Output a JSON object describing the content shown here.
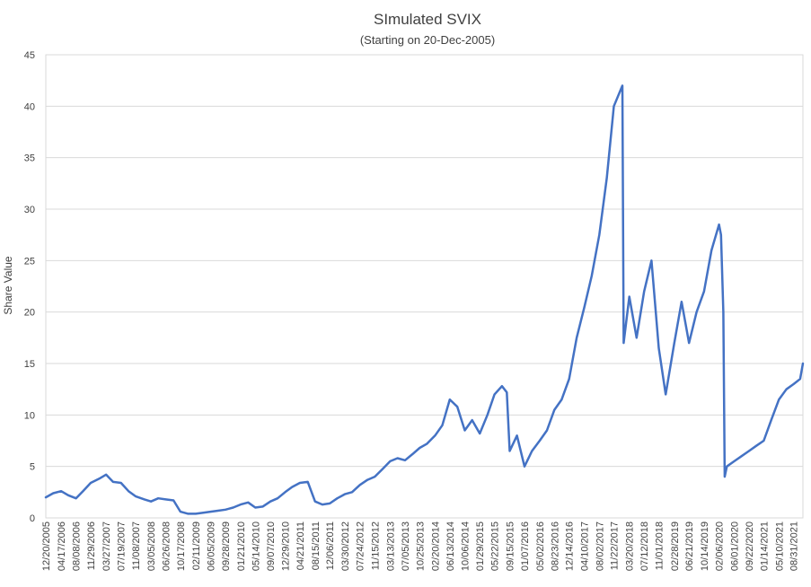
{
  "chart_data": {
    "type": "line",
    "title": "SImulated SVIX",
    "subtitle": "(Starting on 20-Dec-2005)",
    "xlabel": "",
    "ylabel": "Share Value",
    "ylim": [
      0,
      45
    ],
    "yticks": [
      0,
      5,
      10,
      15,
      20,
      25,
      30,
      35,
      40,
      45
    ],
    "grid": true,
    "legend": "none",
    "line_color": "#4472c4",
    "xticks": [
      "12/20/2005",
      "04/17/2006",
      "08/08/2006",
      "11/29/2006",
      "03/27/2007",
      "07/19/2007",
      "11/08/2007",
      "03/05/2008",
      "06/26/2008",
      "10/17/2008",
      "02/11/2009",
      "06/05/2009",
      "09/28/2009",
      "01/21/2010",
      "05/14/2010",
      "09/07/2010",
      "12/29/2010",
      "04/21/2011",
      "08/15/2011",
      "12/06/2011",
      "03/30/2012",
      "07/24/2012",
      "11/15/2012",
      "03/13/2013",
      "07/05/2013",
      "10/25/2013",
      "02/20/2014",
      "06/13/2014",
      "10/06/2014",
      "01/29/2015",
      "05/22/2015",
      "09/15/2015",
      "01/07/2016",
      "05/02/2016",
      "08/23/2016",
      "12/14/2016",
      "04/10/2017",
      "08/02/2017",
      "11/22/2017",
      "03/20/2018",
      "07/12/2018",
      "11/01/2018",
      "02/28/2019",
      "06/21/2019",
      "10/14/2019",
      "02/06/2020",
      "06/01/2020",
      "09/22/2020",
      "01/14/2021",
      "05/10/2021",
      "08/31/2021"
    ],
    "series": [
      {
        "x": [
          "2005-12-20",
          "2006-02-15",
          "2006-04-17",
          "2006-06-10",
          "2006-08-08",
          "2006-10-01",
          "2006-11-29",
          "2007-02-01",
          "2007-03-27",
          "2007-05-20",
          "2007-07-19",
          "2007-09-15",
          "2007-11-08",
          "2008-01-15",
          "2008-03-05",
          "2008-04-30",
          "2008-06-26",
          "2008-08-25",
          "2008-10-17",
          "2008-12-15",
          "2009-02-11",
          "2009-04-10",
          "2009-06-05",
          "2009-08-01",
          "2009-09-28",
          "2009-11-25",
          "2010-01-21",
          "2010-03-20",
          "2010-05-14",
          "2010-07-10",
          "2010-09-07",
          "2010-11-01",
          "2010-12-29",
          "2011-02-20",
          "2011-04-21",
          "2011-06-20",
          "2011-08-15",
          "2011-10-10",
          "2011-12-06",
          "2012-02-01",
          "2012-03-30",
          "2012-05-25",
          "2012-07-24",
          "2012-09-20",
          "2012-11-15",
          "2013-01-10",
          "2013-03-13",
          "2013-05-08",
          "2013-07-05",
          "2013-09-01",
          "2013-10-25",
          "2013-12-20",
          "2014-02-20",
          "2014-04-17",
          "2014-06-13",
          "2014-08-10",
          "2014-10-06",
          "2014-12-01",
          "2015-01-29",
          "2015-03-28",
          "2015-05-22",
          "2015-07-18",
          "2015-08-24",
          "2015-09-15",
          "2015-11-10",
          "2016-01-07",
          "2016-03-04",
          "2016-05-02",
          "2016-06-27",
          "2016-08-23",
          "2016-10-18",
          "2016-12-14",
          "2017-02-10",
          "2017-04-10",
          "2017-06-05",
          "2017-08-02",
          "2017-09-28",
          "2017-11-22",
          "2018-01-26",
          "2018-02-05",
          "2018-03-20",
          "2018-05-15",
          "2018-07-12",
          "2018-09-06",
          "2018-11-01",
          "2018-12-24",
          "2019-02-28",
          "2019-04-25",
          "2019-06-21",
          "2019-08-18",
          "2019-10-14",
          "2019-12-10",
          "2020-02-06",
          "2020-02-21",
          "2020-03-10",
          "2020-03-20",
          "2020-04-06",
          "2020-06-01",
          "2020-07-28",
          "2020-09-22",
          "2020-11-18",
          "2021-01-14",
          "2021-03-12",
          "2021-05-10",
          "2021-07-06",
          "2021-08-31",
          "2021-10-20",
          "2021-11-10"
        ],
        "values": [
          2.0,
          2.4,
          2.6,
          2.2,
          1.9,
          2.6,
          3.4,
          3.8,
          4.2,
          3.5,
          3.4,
          2.6,
          2.1,
          1.8,
          1.6,
          1.9,
          1.8,
          1.7,
          0.6,
          0.4,
          0.4,
          0.5,
          0.6,
          0.7,
          0.8,
          1.0,
          1.3,
          1.5,
          1.0,
          1.1,
          1.6,
          1.9,
          2.5,
          3.0,
          3.4,
          3.5,
          1.6,
          1.3,
          1.4,
          1.9,
          2.3,
          2.5,
          3.2,
          3.7,
          4.0,
          4.7,
          5.5,
          5.8,
          5.6,
          6.2,
          6.8,
          7.2,
          8.0,
          9.0,
          11.5,
          10.8,
          8.5,
          9.5,
          8.2,
          10.0,
          12.0,
          12.8,
          12.2,
          6.5,
          8.0,
          5.0,
          6.5,
          7.5,
          8.5,
          10.5,
          11.5,
          13.5,
          17.5,
          20.5,
          23.5,
          27.5,
          33.0,
          40.0,
          42.0,
          17.0,
          21.5,
          17.5,
          22.0,
          25.0,
          16.5,
          12.0,
          17.0,
          21.0,
          17.0,
          20.0,
          22.0,
          26.0,
          28.5,
          27.5,
          20.0,
          4.0,
          5.0,
          5.5,
          6.0,
          6.5,
          7.0,
          7.5,
          9.5,
          11.5,
          12.5,
          13.0,
          13.5,
          15.0
        ]
      }
    ]
  }
}
